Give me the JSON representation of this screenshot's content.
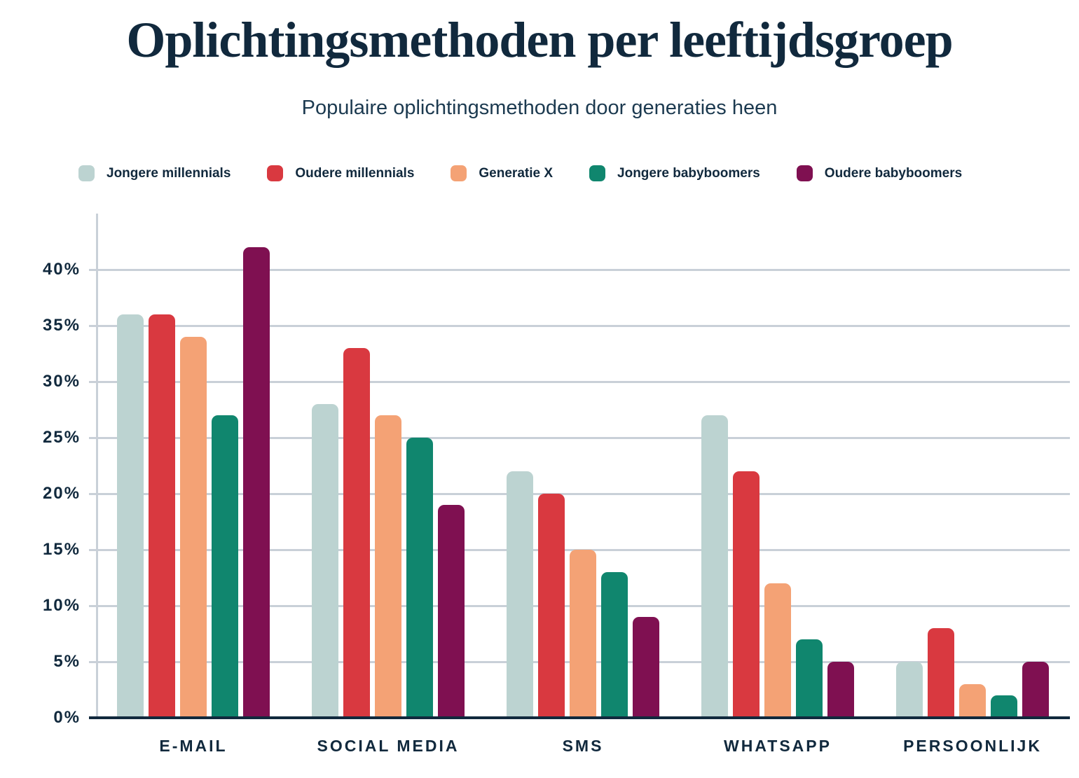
{
  "title": "Oplichtingsmethoden per leeftijdsgroep",
  "subtitle": "Populaire oplichtingsmethoden door generaties heen",
  "colors": {
    "text_navy": "#11293d",
    "gridline": "#c9d0d8",
    "baseline": "#11293d",
    "background": "#ffffff"
  },
  "chart_data": {
    "type": "bar",
    "title": "Oplichtingsmethoden per leeftijdsgroep",
    "subtitle": "Populaire oplichtingsmethoden door generaties heen",
    "categories": [
      "E-MAIL",
      "SOCIAL MEDIA",
      "SMS",
      "WHATSAPP",
      "PERSOONLIJK"
    ],
    "series": [
      {
        "name": "Jongere millennials",
        "color": "#bcd3d1",
        "values": [
          36,
          28,
          22,
          27,
          5
        ]
      },
      {
        "name": "Oudere millennials",
        "color": "#d93940",
        "values": [
          36,
          33,
          20,
          22,
          8
        ]
      },
      {
        "name": "Generatie X",
        "color": "#f4a275",
        "values": [
          34,
          27,
          15,
          12,
          3
        ]
      },
      {
        "name": "Jongere babyboomers",
        "color": "#10866e",
        "values": [
          27,
          25,
          13,
          7,
          2
        ]
      },
      {
        "name": "Oudere babyboomers",
        "color": "#7f1051",
        "values": [
          42,
          19,
          9,
          5,
          5
        ]
      }
    ],
    "ylabel_ticks": [
      "0%",
      "5%",
      "10%",
      "15%",
      "20%",
      "25%",
      "30%",
      "35%",
      "40%"
    ],
    "y_tick_values": [
      0,
      5,
      10,
      15,
      20,
      25,
      30,
      35,
      40
    ],
    "ylim": [
      0,
      45
    ],
    "unit": "%",
    "grid": true,
    "legend_position": "top",
    "xlabel": "",
    "ylabel": ""
  }
}
